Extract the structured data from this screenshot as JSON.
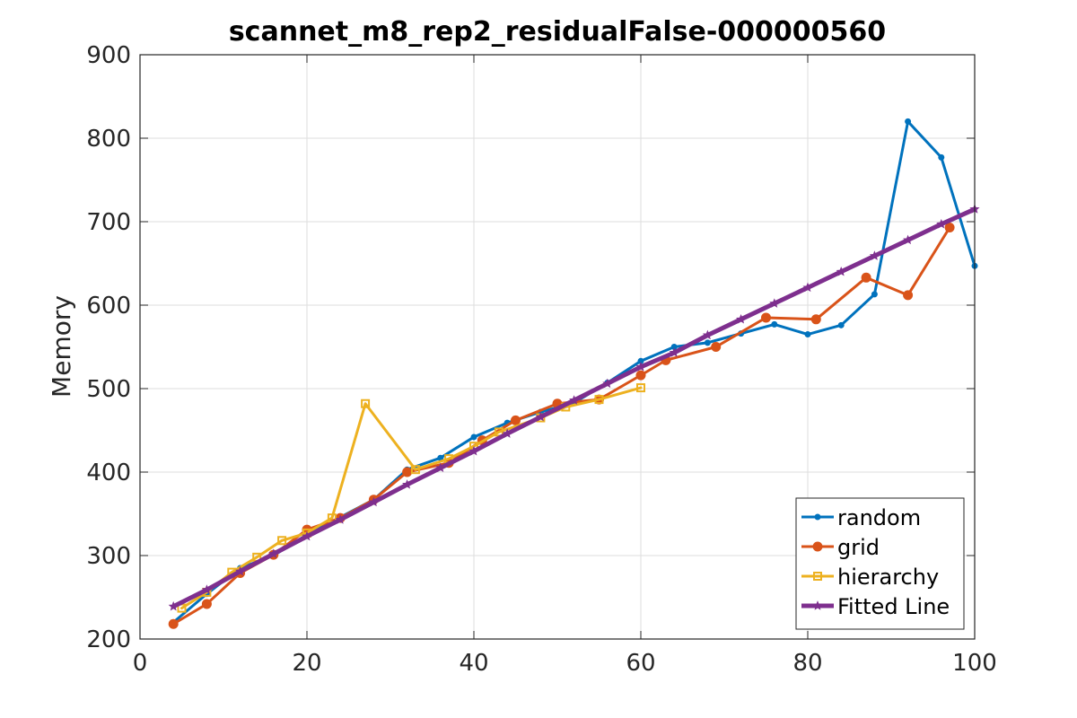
{
  "chart_data": {
    "type": "line",
    "title": "scannet_m8_rep2_residualFalse-000000560",
    "xlabel": "",
    "ylabel": "Memory",
    "xlim": [
      0,
      100
    ],
    "ylim": [
      200,
      900
    ],
    "xticks": [
      0,
      20,
      40,
      60,
      80,
      100
    ],
    "yticks": [
      200,
      300,
      400,
      500,
      600,
      700,
      800,
      900
    ],
    "grid": true,
    "legend_position": "bottom-right",
    "series": [
      {
        "name": "random",
        "color": "#0072BD",
        "marker": "dot",
        "line_width": 3,
        "x": [
          4,
          8,
          12,
          16,
          20,
          24,
          28,
          32,
          36,
          40,
          44,
          48,
          52,
          56,
          60,
          64,
          68,
          72,
          76,
          80,
          84,
          88,
          92,
          96,
          100
        ],
        "y": [
          220,
          254,
          285,
          300,
          325,
          346,
          367,
          403,
          417,
          442,
          459,
          472,
          483,
          507,
          533,
          550,
          555,
          566,
          577,
          565,
          576,
          613,
          820,
          777,
          647
        ]
      },
      {
        "name": "grid",
        "color": "#D95319",
        "marker": "circle",
        "line_width": 3,
        "x": [
          4,
          8,
          12,
          16,
          20,
          24,
          28,
          32,
          37,
          41,
          45,
          50,
          55,
          60,
          63,
          69,
          75,
          81,
          87,
          92,
          97
        ],
        "y": [
          218,
          242,
          279,
          301,
          331,
          345,
          367,
          400,
          411,
          438,
          462,
          482,
          487,
          516,
          534,
          550,
          585,
          583,
          633,
          612,
          693
        ]
      },
      {
        "name": "hierarchy",
        "color": "#EDB120",
        "marker": "square",
        "line_width": 3,
        "x": [
          5,
          8,
          11,
          14,
          17,
          20,
          23,
          27,
          33,
          37,
          40,
          43,
          48,
          51,
          55,
          60
        ],
        "y": [
          237,
          256,
          280,
          298,
          318,
          327,
          345,
          482,
          403,
          416,
          431,
          448,
          465,
          478,
          487,
          501
        ]
      },
      {
        "name": "Fitted Line",
        "color": "#7E2F8E",
        "marker": "star",
        "line_width": 5,
        "x": [
          4,
          8,
          12,
          16,
          20,
          24,
          28,
          32,
          36,
          40,
          44,
          48,
          52,
          56,
          60,
          64,
          68,
          72,
          76,
          80,
          84,
          88,
          92,
          96,
          100
        ],
        "y": [
          239,
          259,
          281,
          302,
          323,
          343,
          364,
          385,
          405,
          425,
          446,
          466,
          486,
          506,
          526,
          543,
          564,
          583,
          602,
          621,
          640,
          659,
          678,
          697,
          715
        ]
      }
    ]
  }
}
